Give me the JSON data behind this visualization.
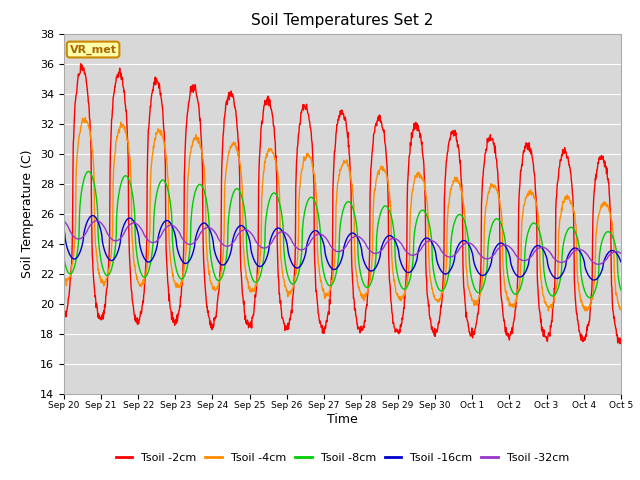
{
  "title": "Soil Temperatures Set 2",
  "xlabel": "Time",
  "ylabel": "Soil Temperature (C)",
  "ylim": [
    14,
    38
  ],
  "yticks": [
    14,
    16,
    18,
    20,
    22,
    24,
    26,
    28,
    30,
    32,
    34,
    36,
    38
  ],
  "series_colors": [
    "#ff0000",
    "#ff8c00",
    "#00cc00",
    "#0000cc",
    "#9933cc"
  ],
  "series_labels": [
    "Tsoil -2cm",
    "Tsoil -4cm",
    "Tsoil -8cm",
    "Tsoil -16cm",
    "Tsoil -32cm"
  ],
  "annotation_text": "VR_met",
  "annotation_bg": "#ffffaa",
  "annotation_edge": "#cc8800",
  "annotation_textcolor": "#aa6600",
  "plot_bg": "#d8d8d8",
  "fig_bg": "#ffffff",
  "n_points": 1440,
  "n_days": 15
}
